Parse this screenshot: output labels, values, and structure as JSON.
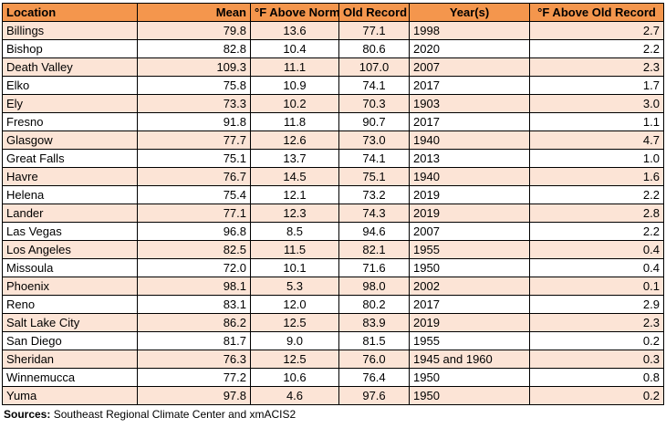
{
  "table": {
    "headers": [
      "Location",
      "Mean",
      "°F Above Normal",
      "Old Record",
      "Year(s)",
      "°F Above Old Record"
    ],
    "rows": [
      [
        "Billings",
        "79.8",
        "13.6",
        "77.1",
        "1998",
        "2.7"
      ],
      [
        "Bishop",
        "82.8",
        "10.4",
        "80.6",
        "2020",
        "2.2"
      ],
      [
        "Death Valley",
        "109.3",
        "11.1",
        "107.0",
        "2007",
        "2.3"
      ],
      [
        "Elko",
        "75.8",
        "10.9",
        "74.1",
        "2017",
        "1.7"
      ],
      [
        "Ely",
        "73.3",
        "10.2",
        "70.3",
        "1903",
        "3.0"
      ],
      [
        "Fresno",
        "91.8",
        "11.8",
        "90.7",
        "2017",
        "1.1"
      ],
      [
        "Glasgow",
        "77.7",
        "12.6",
        "73.0",
        "1940",
        "4.7"
      ],
      [
        "Great Falls",
        "75.1",
        "13.7",
        "74.1",
        "2013",
        "1.0"
      ],
      [
        "Havre",
        "76.7",
        "14.5",
        "75.1",
        "1940",
        "1.6"
      ],
      [
        "Helena",
        "75.4",
        "12.1",
        "73.2",
        "2019",
        "2.2"
      ],
      [
        "Lander",
        "77.1",
        "12.3",
        "74.3",
        "2019",
        "2.8"
      ],
      [
        "Las Vegas",
        "96.8",
        "8.5",
        "94.6",
        "2007",
        "2.2"
      ],
      [
        "Los Angeles",
        "82.5",
        "11.5",
        "82.1",
        "1955",
        "0.4"
      ],
      [
        "Missoula",
        "72.0",
        "10.1",
        "71.6",
        "1950",
        "0.4"
      ],
      [
        "Phoenix",
        "98.1",
        "5.3",
        "98.0",
        "2002",
        "0.1"
      ],
      [
        "Reno",
        "83.1",
        "12.0",
        "80.2",
        "2017",
        "2.9"
      ],
      [
        "Salt Lake City",
        "86.2",
        "12.5",
        "83.9",
        "2019",
        "2.3"
      ],
      [
        "San Diego",
        "81.7",
        "9.0",
        "81.5",
        "1955",
        "0.2"
      ],
      [
        "Sheridan",
        "76.3",
        "12.5",
        "76.0",
        "1945 and 1960",
        "0.3"
      ],
      [
        "Winnemucca",
        "77.2",
        "10.6",
        "76.4",
        "1950",
        "0.8"
      ],
      [
        "Yuma",
        "97.8",
        "4.6",
        "97.6",
        "1950",
        "0.2"
      ]
    ]
  },
  "source": {
    "label": "Sources:",
    "text": " Southeast Regional Climate Center and xmACIS2"
  },
  "colors": {
    "header_fill": "#f4964d",
    "band_fill": "#fce4d6",
    "row_fill": "#ffffff"
  }
}
